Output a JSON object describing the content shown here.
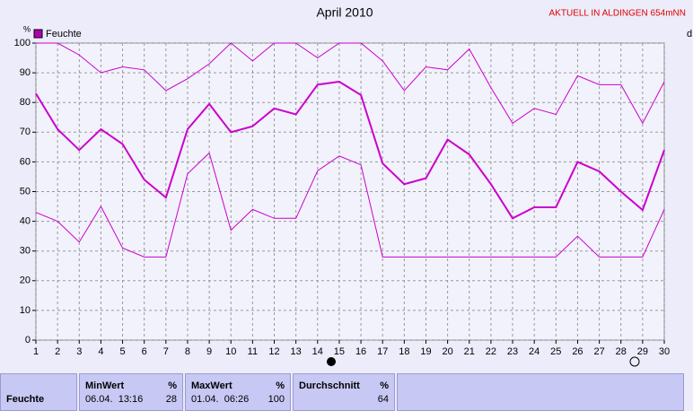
{
  "chart_data": {
    "type": "line",
    "title": "April 2010",
    "subtitle": "AKTUELL IN ALDINGEN 654mNN",
    "y_label": "%",
    "x_label": "d",
    "x": [
      1,
      2,
      3,
      4,
      5,
      6,
      7,
      8,
      9,
      10,
      11,
      12,
      13,
      14,
      15,
      16,
      17,
      18,
      19,
      20,
      21,
      22,
      23,
      24,
      25,
      26,
      27,
      28,
      29,
      30
    ],
    "xlim": [
      1,
      30
    ],
    "xticks": [
      1,
      2,
      3,
      4,
      5,
      6,
      7,
      8,
      9,
      10,
      11,
      12,
      13,
      14,
      15,
      16,
      17,
      18,
      19,
      20,
      21,
      22,
      23,
      24,
      25,
      26,
      27,
      28,
      29,
      30
    ],
    "ylim": [
      0,
      100
    ],
    "yticks": [
      0,
      10,
      20,
      30,
      40,
      50,
      60,
      70,
      80,
      90,
      100
    ],
    "grid": true,
    "series": [
      {
        "name": "Feuchte",
        "color": "#cc00cc",
        "values": [
          83,
          71,
          64,
          71,
          66,
          54,
          48,
          71,
          79.5,
          70,
          72,
          78,
          76,
          86,
          87,
          82.5,
          59.5,
          52.5,
          54.5,
          67.5,
          62.5,
          52.5,
          41,
          44.7,
          44.7,
          60,
          56.8,
          50,
          43.8,
          64
        ]
      },
      {
        "color": "#cc00cc",
        "values": [
          100,
          100,
          96,
          90,
          92,
          91,
          84,
          88,
          93,
          100,
          94,
          100,
          100,
          95,
          100,
          100,
          94,
          84,
          92,
          91,
          98,
          85,
          73,
          78,
          76,
          89,
          86,
          86,
          73,
          87
        ]
      },
      {
        "color": "#cc00cc",
        "values": [
          43,
          40,
          33,
          45,
          31,
          28,
          28,
          56,
          63,
          37,
          44,
          41,
          41,
          57,
          62,
          59,
          28,
          28,
          28,
          28,
          28,
          28,
          28,
          28,
          28,
          35,
          28,
          28,
          28,
          44
        ]
      }
    ]
  },
  "stats_table": {
    "row_label": "Feuchte",
    "columns": [
      {
        "header": "MinWert",
        "unit": "%",
        "date": "06.04.  13:16",
        "value": "28"
      },
      {
        "header": "MaxWert",
        "unit": "%",
        "date": "01.04.  06:26",
        "value": "100"
      },
      {
        "header": "Durchschnitt",
        "unit": "%",
        "value": "64"
      }
    ]
  }
}
